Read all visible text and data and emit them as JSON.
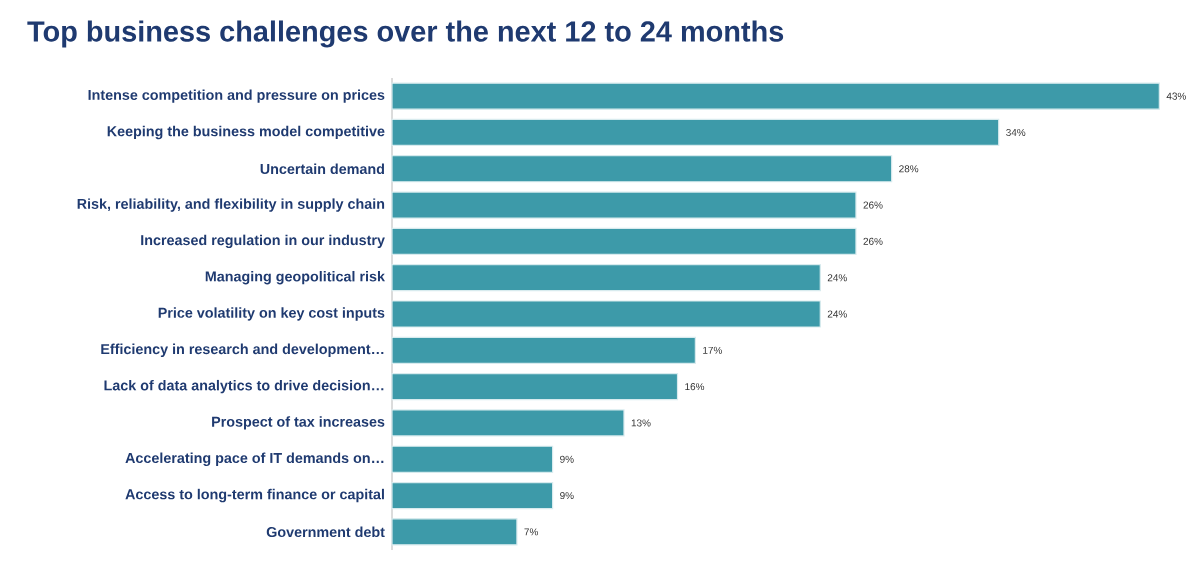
{
  "chart_data": {
    "type": "bar",
    "orientation": "horizontal",
    "title": "Top business challenges over the next 12 to 24 months",
    "categories": [
      "Intense competition and pressure on prices",
      "Keeping the business model competitive",
      "Uncertain demand",
      "Risk, reliability, and flexibility in supply chain",
      "Increased regulation in our industry",
      "Managing geopolitical risk",
      "Price volatility on key cost inputs",
      "Efficiency in research and development…",
      "Lack of data analytics to drive decision…",
      "Prospect of tax increases",
      "Accelerating pace of IT demands on…",
      "Access to long-term finance or capital",
      "Government debt"
    ],
    "values": [
      43,
      34,
      28,
      26,
      26,
      24,
      24,
      17,
      16,
      13,
      9,
      9,
      7
    ],
    "value_labels": [
      "43%",
      "34%",
      "28%",
      "26%",
      "26%",
      "24%",
      "24%",
      "17%",
      "16%",
      "13%",
      "9%",
      "9%",
      "7%"
    ],
    "color": "#3d9aa9"
  }
}
